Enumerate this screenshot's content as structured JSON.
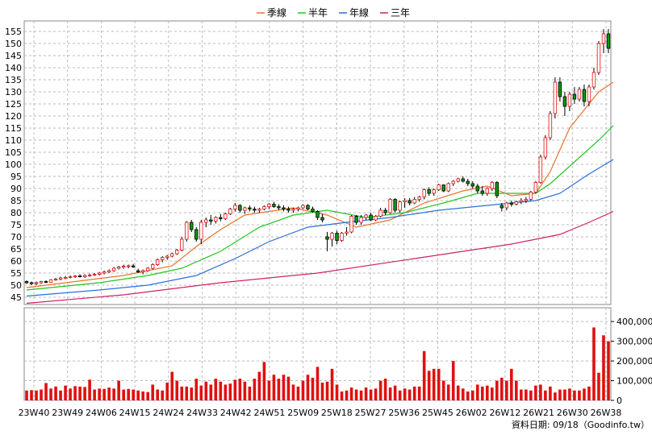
{
  "chart_data": [
    {
      "type": "candlestick",
      "legend": [
        {
          "name": "季線",
          "color": "#e8732c"
        },
        {
          "name": "半年",
          "color": "#22c422"
        },
        {
          "name": "年線",
          "color": "#2b6fd8"
        },
        {
          "name": "三年",
          "color": "#d0206a"
        }
      ],
      "ylim": [
        42,
        158
      ],
      "yticks": [
        45,
        50,
        55,
        60,
        65,
        70,
        75,
        80,
        85,
        90,
        95,
        100,
        105,
        110,
        115,
        120,
        125,
        130,
        135,
        140,
        145,
        150,
        155
      ],
      "xlabels": [
        "23W40",
        "23W49",
        "24W06",
        "24W15",
        "24W24",
        "24W33",
        "24W42",
        "24W51",
        "25W09",
        "25W18",
        "25W27",
        "25W36",
        "25W45",
        "26W02",
        "26W12",
        "26W21",
        "26W30",
        "26W38"
      ],
      "grid": true,
      "candles": [
        [
          51.5,
          52,
          50.5,
          51
        ],
        [
          51,
          51.5,
          50,
          50.8
        ],
        [
          50.8,
          51.5,
          50,
          51
        ],
        [
          51,
          51.8,
          50.5,
          51.5
        ],
        [
          51.5,
          52,
          50.8,
          51.2
        ],
        [
          51.2,
          52.5,
          51,
          52.2
        ],
        [
          52.2,
          53,
          51.8,
          52.5
        ],
        [
          52.5,
          53.5,
          52,
          53
        ],
        [
          53,
          53.8,
          52.5,
          53.2
        ],
        [
          53.2,
          54,
          52.8,
          53.5
        ],
        [
          53.5,
          54.2,
          53,
          53.8
        ],
        [
          53.8,
          54.5,
          53.2,
          53.5
        ],
        [
          53.5,
          54.5,
          53,
          54
        ],
        [
          54,
          54.8,
          53.5,
          54.2
        ],
        [
          54.2,
          55,
          53.8,
          54.5
        ],
        [
          54.5,
          55.5,
          54,
          55
        ],
        [
          55,
          56,
          54.5,
          55.5
        ],
        [
          55.5,
          56.5,
          55,
          56
        ],
        [
          56,
          57.5,
          55.5,
          57
        ],
        [
          57,
          58,
          56.5,
          57.5
        ],
        [
          57.5,
          58.5,
          56.8,
          57.8
        ],
        [
          57.8,
          58.5,
          57,
          58
        ],
        [
          58,
          58.8,
          57.2,
          57.5
        ],
        [
          56,
          56.8,
          55,
          55.5
        ],
        [
          55.5,
          56.5,
          54.5,
          56
        ],
        [
          56,
          57.5,
          55.5,
          57
        ],
        [
          57,
          59,
          56.5,
          58.5
        ],
        [
          58.5,
          61,
          58,
          60.5
        ],
        [
          60.5,
          62,
          59.5,
          61.5
        ],
        [
          61.5,
          62.5,
          60.5,
          62
        ],
        [
          62,
          63.5,
          61.5,
          63
        ],
        [
          63,
          65,
          62.5,
          64.5
        ],
        [
          64.5,
          70,
          64,
          69
        ],
        [
          69,
          76.5,
          68,
          76
        ],
        [
          76,
          77,
          72,
          73
        ],
        [
          73,
          74,
          68,
          69
        ],
        [
          69,
          77,
          67,
          76
        ],
        [
          76,
          78,
          74,
          77
        ],
        [
          77,
          79,
          75,
          76.5
        ],
        [
          76.5,
          78.5,
          75.5,
          78
        ],
        [
          78,
          79.5,
          76.5,
          77.5
        ],
        [
          77.5,
          80,
          77,
          79.5
        ],
        [
          79.5,
          82,
          79,
          81.5
        ],
        [
          81.5,
          84,
          80.5,
          83
        ],
        [
          83,
          83.5,
          80,
          81
        ],
        [
          81,
          82.5,
          79.5,
          82
        ],
        [
          82,
          83,
          80.5,
          81.5
        ],
        [
          81.5,
          82.5,
          80,
          81
        ],
        [
          81,
          82,
          80,
          81.5
        ],
        [
          81.5,
          83,
          81,
          82.5
        ],
        [
          82.5,
          84,
          81.5,
          83.5
        ],
        [
          83.5,
          84.5,
          82,
          82.5
        ],
        [
          82.5,
          83.5,
          81,
          82
        ],
        [
          82,
          83,
          80.5,
          81.5
        ],
        [
          81.5,
          82.5,
          80,
          81
        ],
        [
          81,
          82,
          80,
          81.5
        ],
        [
          81.5,
          82.5,
          80.5,
          82
        ],
        [
          82,
          83.5,
          81.5,
          83
        ],
        [
          83,
          83.5,
          81,
          81.5
        ],
        [
          81.5,
          82.5,
          80,
          80.5
        ],
        [
          80.5,
          81,
          77,
          78
        ],
        [
          78,
          79.5,
          76,
          77
        ],
        [
          70,
          72,
          64,
          69
        ],
        [
          69,
          72,
          66,
          71.5
        ],
        [
          71.5,
          72.5,
          67,
          68.5
        ],
        [
          68.5,
          72,
          68,
          71.5
        ],
        [
          71.5,
          74,
          70.5,
          72
        ],
        [
          72,
          79,
          71.5,
          78.5
        ],
        [
          78.5,
          79,
          75,
          76
        ],
        [
          76,
          79,
          75,
          78
        ],
        [
          78,
          79.5,
          77,
          79
        ],
        [
          79,
          80,
          76.5,
          77
        ],
        [
          77,
          79,
          76.5,
          78.5
        ],
        [
          78.5,
          82,
          78,
          81
        ],
        [
          81,
          82,
          79,
          80
        ],
        [
          80,
          86,
          79.5,
          85.5
        ],
        [
          85.5,
          86,
          80,
          81
        ],
        [
          81,
          85,
          80,
          84.5
        ],
        [
          84.5,
          86,
          82,
          85
        ],
        [
          85,
          86,
          83,
          84
        ],
        [
          84,
          86.5,
          83.5,
          85.5
        ],
        [
          85.5,
          87,
          84.5,
          86.5
        ],
        [
          86.5,
          90,
          85.5,
          89.5
        ],
        [
          89.5,
          90.5,
          87,
          88
        ],
        [
          88,
          90,
          87,
          89.5
        ],
        [
          89.5,
          92,
          89,
          91.5
        ],
        [
          91.5,
          91.5,
          88.5,
          89
        ],
        [
          89,
          92.5,
          88.5,
          92
        ],
        [
          92,
          93.5,
          91,
          93
        ],
        [
          93,
          94.5,
          92.5,
          94
        ],
        [
          94,
          95,
          92.5,
          93
        ],
        [
          93,
          94,
          91,
          92
        ],
        [
          92,
          93,
          90,
          91
        ],
        [
          91,
          92,
          88,
          89
        ],
        [
          89,
          91,
          87,
          88
        ],
        [
          88,
          90.5,
          87,
          90
        ],
        [
          90,
          93,
          89,
          92.5
        ],
        [
          92.5,
          93,
          86,
          87
        ],
        [
          83,
          84,
          80.5,
          82
        ],
        [
          82,
          84.5,
          81,
          84
        ],
        [
          84,
          85,
          82.5,
          83.5
        ],
        [
          83.5,
          85,
          83,
          84.5
        ],
        [
          84.5,
          86,
          83.5,
          85
        ],
        [
          85,
          86.5,
          84,
          85.5
        ],
        [
          85.5,
          89,
          85,
          88.5
        ],
        [
          88.5,
          93,
          88,
          92.5
        ],
        [
          92.5,
          104,
          92,
          103
        ],
        [
          103,
          112,
          102,
          111
        ],
        [
          111,
          122,
          110,
          121
        ],
        [
          121,
          136,
          119,
          134
        ],
        [
          134,
          136,
          126,
          128
        ],
        [
          128,
          130,
          120,
          124
        ],
        [
          124,
          130,
          122,
          129
        ],
        [
          129,
          132,
          125,
          127
        ],
        [
          127,
          132,
          126,
          131
        ],
        [
          131,
          133,
          124,
          126
        ],
        [
          126,
          133,
          124,
          132
        ],
        [
          132,
          140,
          131,
          138
        ],
        [
          138,
          151,
          137,
          150
        ],
        [
          150,
          156,
          146,
          154
        ],
        [
          154,
          156,
          146,
          148
        ]
      ],
      "series": [
        {
          "name": "季線",
          "points": [
            [
              0,
              49
            ],
            [
              20,
              54
            ],
            [
              30,
              58
            ],
            [
              35,
              66
            ],
            [
              40,
              73
            ],
            [
              45,
              79
            ],
            [
              55,
              82
            ],
            [
              62,
              79
            ],
            [
              68,
              74
            ],
            [
              75,
              77
            ],
            [
              82,
              84
            ],
            [
              90,
              89
            ],
            [
              95,
              91
            ],
            [
              100,
              87
            ],
            [
              105,
              88
            ],
            [
              108,
              97
            ],
            [
              112,
              115
            ],
            [
              118,
              130
            ],
            [
              121,
              134
            ]
          ]
        },
        {
          "name": "半年",
          "points": [
            [
              0,
              48
            ],
            [
              15,
              51
            ],
            [
              25,
              54
            ],
            [
              32,
              57
            ],
            [
              40,
              64
            ],
            [
              48,
              74
            ],
            [
              55,
              79
            ],
            [
              62,
              81
            ],
            [
              70,
              78
            ],
            [
              78,
              80
            ],
            [
              86,
              84
            ],
            [
              93,
              88
            ],
            [
              100,
              88
            ],
            [
              105,
              88
            ],
            [
              108,
              92
            ],
            [
              113,
              101
            ],
            [
              118,
              110
            ],
            [
              121,
              116
            ]
          ]
        },
        {
          "name": "年線",
          "points": [
            [
              0,
              45.5
            ],
            [
              15,
              48
            ],
            [
              25,
              50
            ],
            [
              35,
              54
            ],
            [
              43,
              61
            ],
            [
              50,
              68
            ],
            [
              58,
              74
            ],
            [
              66,
              76
            ],
            [
              75,
              78
            ],
            [
              85,
              81
            ],
            [
              95,
              83
            ],
            [
              105,
              85
            ],
            [
              110,
              88
            ],
            [
              116,
              96
            ],
            [
              121,
              102
            ]
          ]
        },
        {
          "name": "三年",
          "points": [
            [
              0,
              42.5
            ],
            [
              20,
              46
            ],
            [
              40,
              51
            ],
            [
              60,
              55
            ],
            [
              80,
              61
            ],
            [
              100,
              67
            ],
            [
              110,
              71
            ],
            [
              116,
              76
            ],
            [
              121,
              80.5
            ]
          ]
        }
      ]
    },
    {
      "type": "bar",
      "ylim": [
        0,
        470000
      ],
      "yticks": [
        0,
        100000,
        200000,
        300000,
        400000
      ],
      "ytick_labels": [
        "0",
        "100,000",
        "200,000",
        "300,000",
        "400,000"
      ],
      "values": [
        50000,
        52000,
        50000,
        55000,
        88000,
        60000,
        70000,
        50000,
        75000,
        60000,
        72000,
        70000,
        68000,
        105000,
        55000,
        60000,
        58000,
        65000,
        60000,
        100000,
        55000,
        58000,
        55000,
        50000,
        45000,
        42000,
        80000,
        55000,
        50000,
        90000,
        145000,
        100000,
        70000,
        70000,
        65000,
        110000,
        75000,
        95000,
        80000,
        110000,
        95000,
        80000,
        85000,
        105000,
        110000,
        95000,
        70000,
        110000,
        145000,
        195000,
        100000,
        130000,
        110000,
        130000,
        120000,
        80000,
        70000,
        100000,
        130000,
        115000,
        170000,
        90000,
        95000,
        160000,
        80000,
        45000,
        50000,
        65000,
        55000,
        50000,
        65000,
        55000,
        60000,
        100000,
        110000,
        65000,
        75000,
        50000,
        60000,
        55000,
        70000,
        70000,
        250000,
        150000,
        160000,
        160000,
        100000,
        80000,
        200000,
        75000,
        60000,
        45000,
        50000,
        80000,
        70000,
        75000,
        65000,
        100000,
        115000,
        100000,
        160000,
        100000,
        55000,
        55000,
        50000,
        75000,
        80000,
        50000,
        70000,
        40000,
        55000,
        55000,
        60000,
        50000,
        50000,
        60000,
        70000,
        370000,
        140000,
        330000,
        300000
      ]
    }
  ],
  "source_label": "資料日期: 09/18（Goodinfo.tw）"
}
